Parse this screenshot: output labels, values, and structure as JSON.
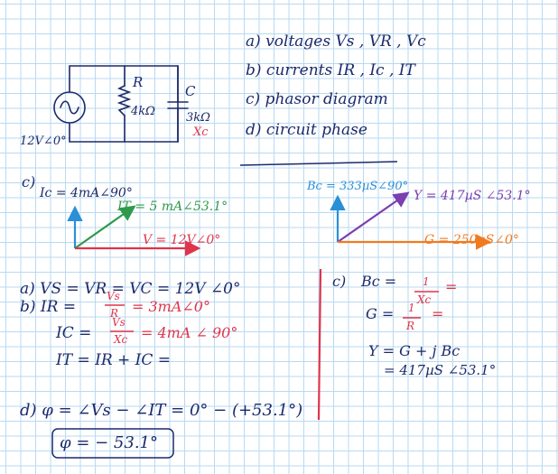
{
  "circuit": {
    "source_label": "12V∠0°",
    "resistor_label": "R",
    "resistor_value": "4kΩ",
    "capacitor_label": "C",
    "capacitor_value": "3kΩ",
    "capacitor_reactance": "Xc"
  },
  "questions": [
    "a) voltages Vs , VR , Vc",
    "b) currents IR , Ic , IT",
    "c) phasor diagram",
    "d) circuit phase"
  ],
  "current_phasors": {
    "part_label": "c)",
    "ic_label": "Ic = 4mA∠90°",
    "it_label": "IT = 5 mA∠53.1°",
    "v_label": "V = 12V∠0°"
  },
  "admittance_phasors": {
    "bc_label": "Bc = 333µS∠90°",
    "y_label": "Y = 417µS ∠53.1°",
    "g_label": "G = 250µS∠0°"
  },
  "answers_ab": {
    "a": "a)  VS = VR = VC = 12V ∠0°",
    "b_ir_prefix": "b)  IR  =",
    "b_ir_num": "Vs",
    "b_ir_den": "R",
    "b_ir_result": "= 3mA∠0°",
    "b_ic_prefix": "IC  =",
    "b_ic_num": "Vs",
    "b_ic_den": "Xc",
    "b_ic_result": "= 4mA ∠ 90°",
    "b_it": "IT  = IR + IC ="
  },
  "answers_c": {
    "label": "c)",
    "bc_prefix": "Bc =",
    "bc_num": "1",
    "bc_den": "Xc",
    "bc_suffix": "=",
    "g_prefix": "G =",
    "g_num": "1",
    "g_den": "R",
    "g_suffix": "=",
    "y_line1": "Y = G + j Bc",
    "y_line2": "= 417µS ∠53.1°"
  },
  "answer_d": {
    "line": "d)  φ = ∠Vs − ∠IT = 0° − (+53.1°)",
    "result": "φ = − 53.1°"
  },
  "colors": {
    "navy": "#1b2a6b",
    "red": "#e0344a",
    "green": "#2e9a4a",
    "blue": "#2a8fd6",
    "purple": "#7a3fb0",
    "orange": "#f07a20",
    "grid": "#b9d9f2"
  }
}
